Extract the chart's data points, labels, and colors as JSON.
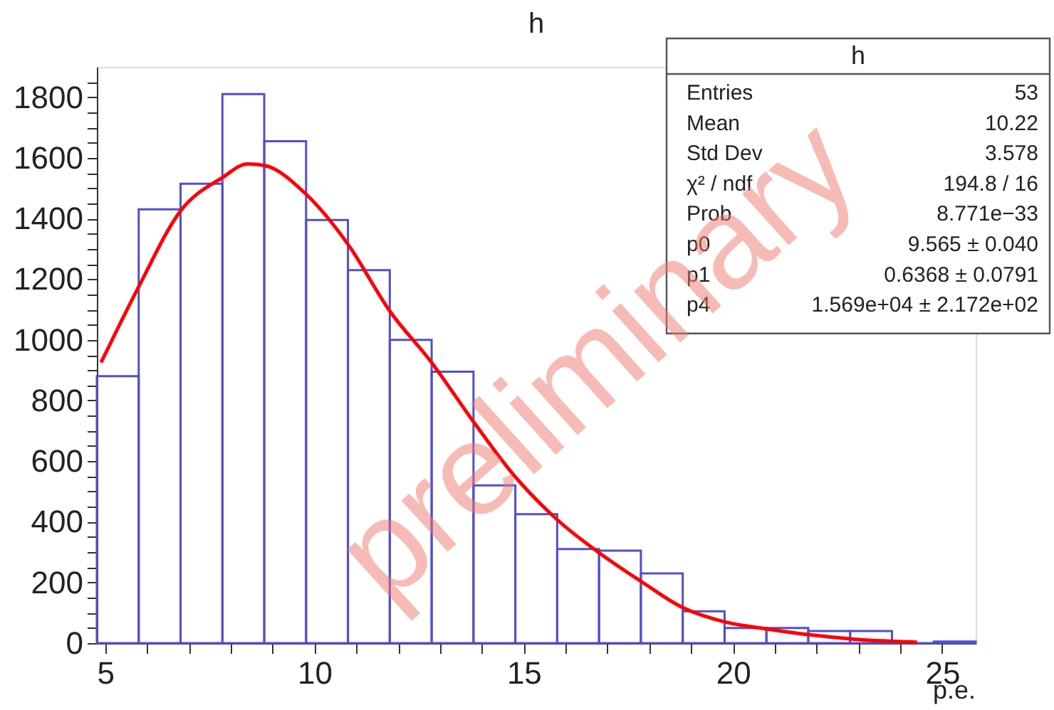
{
  "chart_data": {
    "type": "histogram",
    "title": "h",
    "xlabel": "p.e.",
    "xlim": [
      4.8,
      25.8
    ],
    "ylim": [
      0,
      1900
    ],
    "xticks": [
      5,
      {
        "value": 6,
        "label": null
      },
      {
        "value": 7,
        "label": null
      },
      {
        "value": 8,
        "label": null
      },
      {
        "value": 9,
        "label": null
      },
      10,
      {
        "value": 11,
        "label": null
      },
      {
        "value": 12,
        "label": null
      },
      {
        "value": 13,
        "label": null
      },
      {
        "value": 14,
        "label": null
      },
      15,
      {
        "value": 16,
        "label": null
      },
      {
        "value": 17,
        "label": null
      },
      {
        "value": 18,
        "label": null
      },
      {
        "value": 19,
        "label": null
      },
      20,
      {
        "value": 21,
        "label": null
      },
      {
        "value": 22,
        "label": null
      },
      {
        "value": 23,
        "label": null
      },
      {
        "value": 24,
        "label": null
      },
      25
    ],
    "yticks": [
      0,
      {
        "value": 50,
        "label": null
      },
      {
        "value": 100,
        "label": null
      },
      {
        "value": 150,
        "label": null
      },
      200,
      {
        "value": 250,
        "label": null
      },
      {
        "value": 300,
        "label": null
      },
      {
        "value": 350,
        "label": null
      },
      400,
      {
        "value": 450,
        "label": null
      },
      {
        "value": 500,
        "label": null
      },
      {
        "value": 550,
        "label": null
      },
      600,
      {
        "value": 650,
        "label": null
      },
      {
        "value": 700,
        "label": null
      },
      {
        "value": 750,
        "label": null
      },
      800,
      {
        "value": 850,
        "label": null
      },
      {
        "value": 900,
        "label": null
      },
      {
        "value": 950,
        "label": null
      },
      1000,
      {
        "value": 1050,
        "label": null
      },
      {
        "value": 1100,
        "label": null
      },
      {
        "value": 1150,
        "label": null
      },
      1200,
      {
        "value": 1250,
        "label": null
      },
      {
        "value": 1300,
        "label": null
      },
      {
        "value": 1350,
        "label": null
      },
      1400,
      {
        "value": 1450,
        "label": null
      },
      {
        "value": 1500,
        "label": null
      },
      {
        "value": 1550,
        "label": null
      },
      1600,
      {
        "value": 1650,
        "label": null
      },
      {
        "value": 1700,
        "label": null
      },
      {
        "value": 1750,
        "label": null
      },
      1800,
      {
        "value": 1850,
        "label": null
      }
    ],
    "series": [
      {
        "color": "#5050cc",
        "bins": [
          4.8,
          5.8,
          6.8,
          7.8,
          8.8,
          9.8,
          10.8,
          11.8,
          12.8,
          13.8,
          14.8,
          15.8,
          16.8,
          17.8,
          18.8,
          19.8,
          20.8,
          21.8,
          22.8,
          23.8,
          24.8,
          25.8
        ],
        "values": [
          880,
          1430,
          1515,
          1810,
          1655,
          1395,
          1230,
          1000,
          895,
          520,
          425,
          310,
          305,
          230,
          105,
          50,
          50,
          40,
          40,
          0,
          5
        ]
      },
      {
        "type": "line",
        "color": "#ff0000",
        "x": [
          4.9,
          5.8,
          6.8,
          7.8,
          8.4,
          8.8,
          9.8,
          10.8,
          11.8,
          12.8,
          13.8,
          14.8,
          15.8,
          16.8,
          17.8,
          18.8,
          19.8,
          20.8,
          21.8,
          22.9,
          24.4
        ],
        "values": [
          925,
          1175,
          1425,
          1535,
          1580,
          1575,
          1480,
          1315,
          1095,
          925,
          730,
          548,
          407,
          298,
          204,
          117,
          70,
          47,
          28,
          13,
          3
        ]
      }
    ],
    "annotations": [
      "preliminary",
      "h",
      "Entries",
      "53",
      "Mean",
      "10.22",
      "Std Dev",
      "3.578",
      "χ² / ndf",
      "194.8 / 16",
      "Prob",
      "8.771e−33",
      "p0",
      "9.565 ± 0.040",
      "p1",
      "0.6368 ± 0.0791",
      "p4",
      "1.569e+04 ± 2.172e+02"
    ]
  }
}
